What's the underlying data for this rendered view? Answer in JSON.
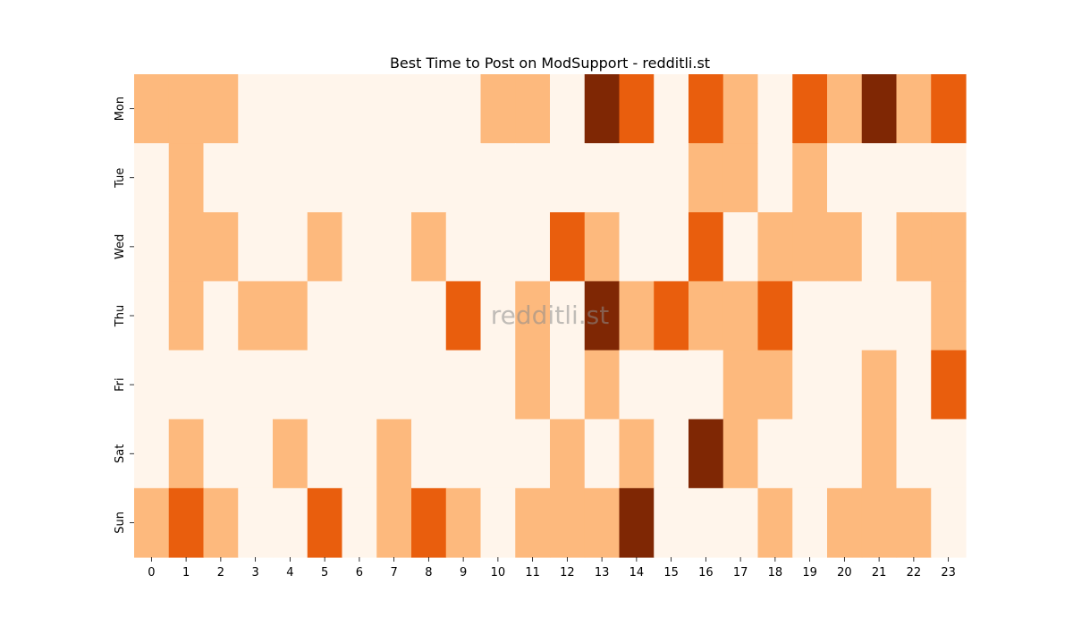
{
  "chart_data": {
    "type": "heatmap",
    "title": "Best Time to Post on ModSupport - redditli.st",
    "xlabel": "",
    "ylabel": "",
    "x_categories": [
      "0",
      "1",
      "2",
      "3",
      "4",
      "5",
      "6",
      "7",
      "8",
      "9",
      "10",
      "11",
      "12",
      "13",
      "14",
      "15",
      "16",
      "17",
      "18",
      "19",
      "20",
      "21",
      "22",
      "23"
    ],
    "y_categories": [
      "Mon",
      "Tue",
      "Wed",
      "Thu",
      "Fri",
      "Sat",
      "Sun"
    ],
    "values": [
      [
        1,
        1,
        1,
        0,
        0,
        0,
        0,
        0,
        0,
        0,
        1,
        1,
        0,
        3,
        2,
        0,
        2,
        1,
        0,
        2,
        1,
        3,
        1,
        2
      ],
      [
        0,
        1,
        0,
        0,
        0,
        0,
        0,
        0,
        0,
        0,
        0,
        0,
        0,
        0,
        0,
        0,
        1,
        1,
        0,
        1,
        0,
        0,
        0,
        0
      ],
      [
        0,
        1,
        1,
        0,
        0,
        1,
        0,
        0,
        1,
        0,
        0,
        0,
        2,
        1,
        0,
        0,
        2,
        0,
        1,
        1,
        1,
        0,
        1,
        1
      ],
      [
        0,
        1,
        0,
        1,
        1,
        0,
        0,
        0,
        0,
        2,
        0,
        1,
        0,
        3,
        1,
        2,
        1,
        1,
        2,
        0,
        0,
        0,
        0,
        1
      ],
      [
        0,
        0,
        0,
        0,
        0,
        0,
        0,
        0,
        0,
        0,
        0,
        1,
        0,
        1,
        0,
        0,
        0,
        1,
        1,
        0,
        0,
        1,
        0,
        2
      ],
      [
        0,
        1,
        0,
        0,
        1,
        0,
        0,
        1,
        0,
        0,
        0,
        0,
        1,
        0,
        1,
        0,
        3,
        1,
        0,
        0,
        0,
        1,
        0,
        0
      ],
      [
        1,
        2,
        1,
        0,
        0,
        2,
        0,
        1,
        2,
        1,
        0,
        1,
        1,
        1,
        3,
        0,
        0,
        0,
        1,
        0,
        1,
        1,
        1,
        0
      ]
    ],
    "color_scale": [
      "#fff5eb",
      "#fdb97d",
      "#e95e0d",
      "#7f2704"
    ],
    "colorbar": false,
    "grid": false,
    "watermark": "redditli.st"
  }
}
